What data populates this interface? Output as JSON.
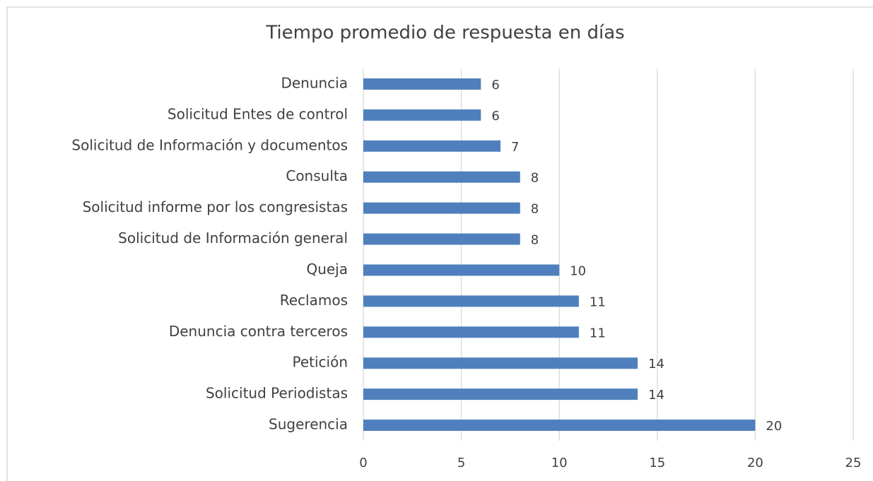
{
  "chart_data": {
    "type": "bar",
    "orientation": "horizontal",
    "title": "Tiempo promedio de respuesta en días",
    "categories": [
      "Denuncia",
      "Solicitud Entes de control",
      "Solicitud de Información y documentos",
      "Consulta",
      "Solicitud informe por los congresistas",
      "Solicitud de Información general",
      "Queja",
      "Reclamos",
      "Denuncia contra terceros",
      "Petición",
      "Solicitud Periodistas",
      "Sugerencia"
    ],
    "values": [
      6,
      6,
      7,
      8,
      8,
      8,
      10,
      11,
      11,
      14,
      14,
      20
    ],
    "color": "#4f80bd",
    "xlim": [
      0,
      25
    ],
    "xticks": [
      0,
      5,
      10,
      15,
      20,
      25
    ],
    "grid": true
  }
}
